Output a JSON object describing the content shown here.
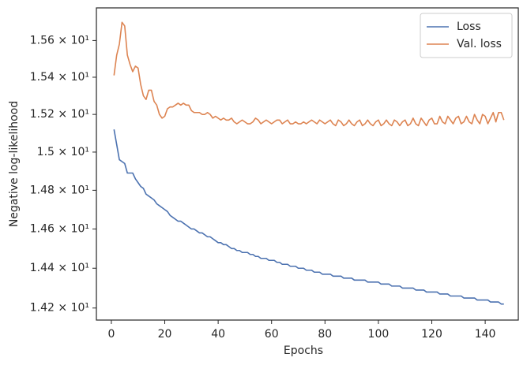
{
  "chart_data": {
    "type": "line",
    "xlabel": "Epochs",
    "ylabel": "Negative log-likelihood",
    "log_y": true,
    "grid": false,
    "legend": "upper right",
    "xlim": [
      -5.6,
      152.4
    ],
    "xticks": [
      0,
      20,
      40,
      60,
      80,
      100,
      120,
      140
    ],
    "ylim": [
      14.14,
      15.78
    ],
    "yticks": [
      {
        "value": 14.2,
        "label": "1.42 × 10¹"
      },
      {
        "value": 14.4,
        "label": "1.44 × 10¹"
      },
      {
        "value": 14.6,
        "label": "1.46 × 10¹"
      },
      {
        "value": 14.8,
        "label": "1.48 × 10¹"
      },
      {
        "value": 15.0,
        "label": "1.5 × 10¹"
      },
      {
        "value": 15.2,
        "label": "1.52 × 10¹"
      },
      {
        "value": 15.4,
        "label": "1.54 × 10¹"
      },
      {
        "value": 15.6,
        "label": "1.56 × 10¹"
      }
    ],
    "x": [
      1,
      2,
      3,
      4,
      5,
      6,
      7,
      8,
      9,
      10,
      11,
      12,
      13,
      14,
      15,
      16,
      17,
      18,
      19,
      20,
      21,
      22,
      23,
      24,
      25,
      26,
      27,
      28,
      29,
      30,
      31,
      32,
      33,
      34,
      35,
      36,
      37,
      38,
      39,
      40,
      41,
      42,
      43,
      44,
      45,
      46,
      47,
      48,
      49,
      50,
      51,
      52,
      53,
      54,
      55,
      56,
      57,
      58,
      59,
      60,
      61,
      62,
      63,
      64,
      65,
      66,
      67,
      68,
      69,
      70,
      71,
      72,
      73,
      74,
      75,
      76,
      77,
      78,
      79,
      80,
      81,
      82,
      83,
      84,
      85,
      86,
      87,
      88,
      89,
      90,
      91,
      92,
      93,
      94,
      95,
      96,
      97,
      98,
      99,
      100,
      101,
      102,
      103,
      104,
      105,
      106,
      107,
      108,
      109,
      110,
      111,
      112,
      113,
      114,
      115,
      116,
      117,
      118,
      119,
      120,
      121,
      122,
      123,
      124,
      125,
      126,
      127,
      128,
      129,
      130,
      131,
      132,
      133,
      134,
      135,
      136,
      137,
      138,
      139,
      140,
      141,
      142,
      143,
      144,
      145,
      146,
      147
    ],
    "series": [
      {
        "name": "Loss",
        "color": "#4c72b0",
        "values": [
          15.12,
          15.04,
          14.96,
          14.95,
          14.94,
          14.89,
          14.89,
          14.89,
          14.86,
          14.84,
          14.82,
          14.81,
          14.78,
          14.77,
          14.76,
          14.75,
          14.73,
          14.72,
          14.71,
          14.7,
          14.69,
          14.67,
          14.66,
          14.65,
          14.64,
          14.64,
          14.63,
          14.62,
          14.61,
          14.6,
          14.6,
          14.59,
          14.58,
          14.58,
          14.57,
          14.56,
          14.56,
          14.55,
          14.54,
          14.53,
          14.53,
          14.52,
          14.52,
          14.51,
          14.5,
          14.5,
          14.49,
          14.49,
          14.48,
          14.48,
          14.48,
          14.47,
          14.47,
          14.46,
          14.46,
          14.45,
          14.45,
          14.45,
          14.44,
          14.44,
          14.44,
          14.43,
          14.43,
          14.42,
          14.42,
          14.42,
          14.41,
          14.41,
          14.41,
          14.4,
          14.4,
          14.4,
          14.39,
          14.39,
          14.39,
          14.38,
          14.38,
          14.38,
          14.37,
          14.37,
          14.37,
          14.37,
          14.36,
          14.36,
          14.36,
          14.36,
          14.35,
          14.35,
          14.35,
          14.35,
          14.34,
          14.34,
          14.34,
          14.34,
          14.34,
          14.33,
          14.33,
          14.33,
          14.33,
          14.33,
          14.32,
          14.32,
          14.32,
          14.32,
          14.31,
          14.31,
          14.31,
          14.31,
          14.3,
          14.3,
          14.3,
          14.3,
          14.3,
          14.29,
          14.29,
          14.29,
          14.29,
          14.28,
          14.28,
          14.28,
          14.28,
          14.28,
          14.27,
          14.27,
          14.27,
          14.27,
          14.26,
          14.26,
          14.26,
          14.26,
          14.26,
          14.25,
          14.25,
          14.25,
          14.25,
          14.25,
          14.24,
          14.24,
          14.24,
          14.24,
          14.24,
          14.23,
          14.23,
          14.23,
          14.23,
          14.22,
          14.22
        ]
      },
      {
        "name": "Val. loss",
        "color": "#dd8452",
        "values": [
          15.41,
          15.52,
          15.58,
          15.7,
          15.68,
          15.52,
          15.47,
          15.43,
          15.46,
          15.45,
          15.36,
          15.3,
          15.28,
          15.33,
          15.33,
          15.27,
          15.25,
          15.2,
          15.18,
          15.19,
          15.23,
          15.24,
          15.24,
          15.25,
          15.26,
          15.25,
          15.26,
          15.25,
          15.25,
          15.22,
          15.21,
          15.21,
          15.21,
          15.2,
          15.2,
          15.21,
          15.2,
          15.18,
          15.19,
          15.18,
          15.17,
          15.18,
          15.17,
          15.17,
          15.18,
          15.16,
          15.15,
          15.16,
          15.17,
          15.16,
          15.15,
          15.15,
          15.16,
          15.18,
          15.17,
          15.15,
          15.16,
          15.17,
          15.16,
          15.15,
          15.16,
          15.17,
          15.17,
          15.15,
          15.16,
          15.17,
          15.15,
          15.15,
          15.16,
          15.15,
          15.15,
          15.16,
          15.15,
          15.16,
          15.17,
          15.16,
          15.15,
          15.17,
          15.16,
          15.15,
          15.16,
          15.17,
          15.15,
          15.14,
          15.17,
          15.16,
          15.14,
          15.15,
          15.17,
          15.15,
          15.14,
          15.16,
          15.17,
          15.14,
          15.15,
          15.17,
          15.15,
          15.14,
          15.16,
          15.17,
          15.14,
          15.15,
          15.17,
          15.15,
          15.14,
          15.17,
          15.16,
          15.14,
          15.16,
          15.17,
          15.14,
          15.15,
          15.18,
          15.15,
          15.14,
          15.18,
          15.16,
          15.14,
          15.17,
          15.18,
          15.15,
          15.15,
          15.19,
          15.16,
          15.15,
          15.19,
          15.17,
          15.15,
          15.18,
          15.19,
          15.15,
          15.16,
          15.19,
          15.16,
          15.15,
          15.2,
          15.17,
          15.15,
          15.2,
          15.19,
          15.15,
          15.18,
          15.21,
          15.16,
          15.21,
          15.21,
          15.17
        ]
      }
    ]
  }
}
